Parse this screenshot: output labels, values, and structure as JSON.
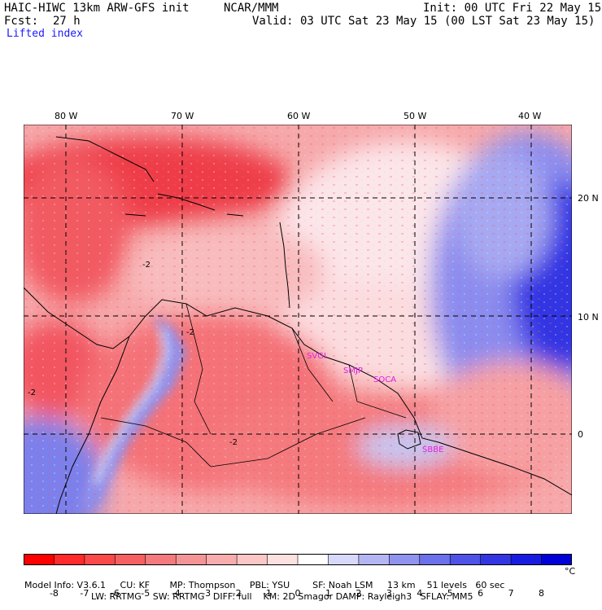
{
  "header": {
    "model": "HAIC-HIWC 13km ARW-GFS init",
    "org": "NCAR/MMM",
    "init": "Init: 00 UTC Fri 22 May 15",
    "fcst_label": "Fcst:",
    "fcst_value": "27 h",
    "valid": "Valid: 03 UTC Sat 23 May 15 (00 LST Sat 23 May 15)",
    "field": "Lifted index"
  },
  "map": {
    "lon_labels": [
      "80 W",
      "70 W",
      "60 W",
      "50 W",
      "40 W"
    ],
    "lat_labels": [
      "20 N",
      "10 N",
      "0"
    ],
    "stations": [
      {
        "id": "SKCL",
        "name": "station-label-svgi",
        "text": "SVGI"
      },
      {
        "id": "SMJP",
        "name": "station-label-smjp",
        "text": "SMJP"
      },
      {
        "id": "SOCA",
        "name": "station-label-soca",
        "text": "SOCA"
      },
      {
        "id": "SBBE",
        "name": "station-label-sbbe",
        "text": "SBBE"
      }
    ],
    "contour_label": "-2",
    "colors": {
      "strong_negative": "#e8102a",
      "negative": "#f47a7e",
      "slightly_negative": "#fbc6c6",
      "neutral": "#f4f4ff",
      "positive": "#8a8cf0",
      "strong_positive": "#2a2ae8"
    }
  },
  "colorbar": {
    "tick_labels": [
      "-8",
      "-7",
      "-6",
      "-5",
      "-4",
      "-3",
      "-2",
      "-1",
      "0",
      "1",
      "2",
      "3",
      "4",
      "5",
      "6",
      "7",
      "8"
    ],
    "unit": "°C",
    "colors": [
      "#ff0000",
      "#ff2a2a",
      "#fb4848",
      "#f66060",
      "#f47a7e",
      "#f59496",
      "#f8acae",
      "#fbc6c6",
      "#fde0e0",
      "#ffffff",
      "#d8d8fa",
      "#b4b6f4",
      "#9094ee",
      "#6c70ea",
      "#4e52e6",
      "#3236e2",
      "#181ce0",
      "#0000d8"
    ]
  },
  "footer": {
    "line1": "Model Info: V3.6.1     CU: KF       MP: Thompson     PBL: YSU        SF: Noah LSM     13 km    51 levels   60 sec",
    "line2": "LW: RRTMG    SW: RRTMG   DIFF: full    KM: 2D Smagor DAMP: Rayleigh3   SFLAY: MM5"
  }
}
